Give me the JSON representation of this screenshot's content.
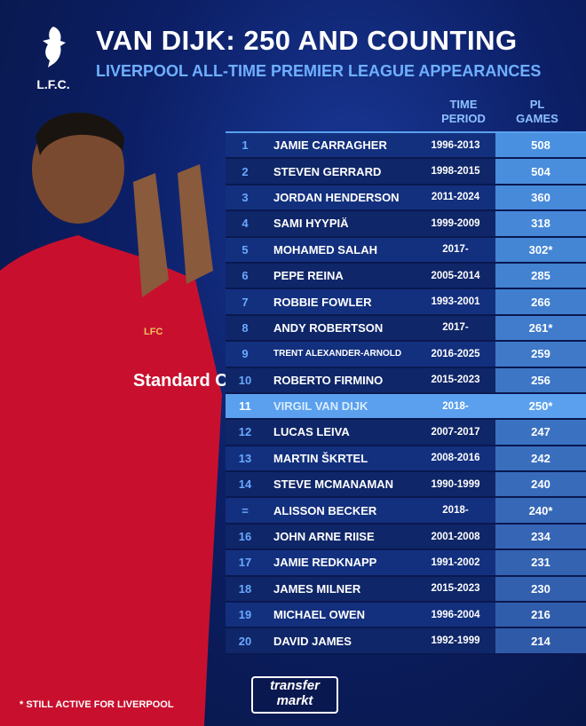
{
  "logo": {
    "text": "L.F.C."
  },
  "title": "VAN DIJK: 250 AND COUNTING",
  "subtitle": "LIVERPOOL ALL-TIME PREMIER LEAGUE APPEARANCES",
  "headers": {
    "period": "TIME PERIOD",
    "games": "PL GAMES"
  },
  "rows": [
    {
      "rank": "1",
      "name": "JAMIE CARRAGHER",
      "period": "1996-2013",
      "games": "508"
    },
    {
      "rank": "2",
      "name": "STEVEN GERRARD",
      "period": "1998-2015",
      "games": "504"
    },
    {
      "rank": "3",
      "name": "JORDAN HENDERSON",
      "period": "2011-2024",
      "games": "360"
    },
    {
      "rank": "4",
      "name": "SAMI HYYPIÄ",
      "period": "1999-2009",
      "games": "318"
    },
    {
      "rank": "5",
      "name": "MOHAMED SALAH",
      "period": "2017-",
      "games": "302*"
    },
    {
      "rank": "6",
      "name": "PEPE REINA",
      "period": "2005-2014",
      "games": "285"
    },
    {
      "rank": "7",
      "name": "ROBBIE FOWLER",
      "period": "1993-2001",
      "games": "266"
    },
    {
      "rank": "8",
      "name": "ANDY ROBERTSON",
      "period": "2017-",
      "games": "261*"
    },
    {
      "rank": "9",
      "name": "TRENT ALEXANDER-ARNOLD",
      "period": "2016-2025",
      "games": "259"
    },
    {
      "rank": "10",
      "name": "ROBERTO FIRMINO",
      "period": "2015-2023",
      "games": "256"
    },
    {
      "rank": "11",
      "name": "VIRGIL VAN DIJK",
      "period": "2018-",
      "games": "250*",
      "highlight": true
    },
    {
      "rank": "12",
      "name": "LUCAS LEIVA",
      "period": "2007-2017",
      "games": "247"
    },
    {
      "rank": "13",
      "name": "MARTIN ŠKRTEL",
      "period": "2008-2016",
      "games": "242"
    },
    {
      "rank": "14",
      "name": "STEVE MCMANAMAN",
      "period": "1990-1999",
      "games": "240"
    },
    {
      "rank": "=",
      "name": "ALISSON BECKER",
      "period": "2018-",
      "games": "240*"
    },
    {
      "rank": "16",
      "name": "JOHN ARNE RIISE",
      "period": "2001-2008",
      "games": "234"
    },
    {
      "rank": "17",
      "name": "JAMIE REDKNAPP",
      "period": "1991-2002",
      "games": "231"
    },
    {
      "rank": "18",
      "name": "JAMES MILNER",
      "period": "2015-2023",
      "games": "230"
    },
    {
      "rank": "19",
      "name": "MICHAEL OWEN",
      "period": "1996-2004",
      "games": "216"
    },
    {
      "rank": "20",
      "name": "DAVID JAMES",
      "period": "1992-1999",
      "games": "214"
    }
  ],
  "footnote": "* STILL ACTIVE FOR LIVERPOOL",
  "brand": {
    "line1": "transfer",
    "line2": "markt"
  },
  "shirt": {
    "sponsor": "Standard Chartered",
    "crest": "LFC"
  },
  "colors": {
    "games_top": "#4a90e0",
    "games_bottom": "#2f5aa8",
    "highlight": "#5aa0ee",
    "jersey": "#c8102e"
  }
}
